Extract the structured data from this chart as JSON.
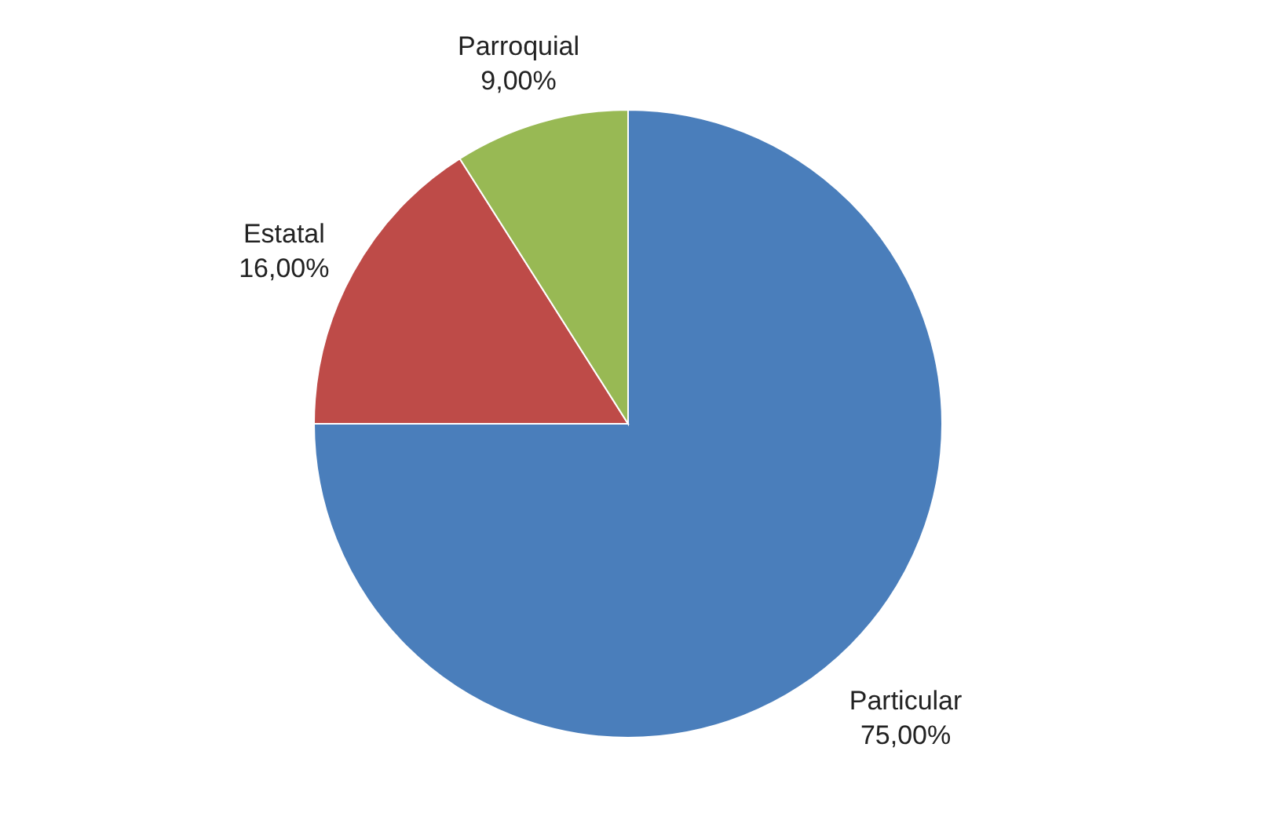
{
  "chart_data": {
    "type": "pie",
    "categories": [
      "Particular",
      "Estatal",
      "Parroquial"
    ],
    "values": [
      75,
      16,
      9
    ],
    "value_labels": [
      "75,00%",
      "16,00%",
      "9,00%"
    ],
    "colors": [
      "#4a7ebb",
      "#be4b48",
      "#98b954"
    ],
    "legend": false
  }
}
